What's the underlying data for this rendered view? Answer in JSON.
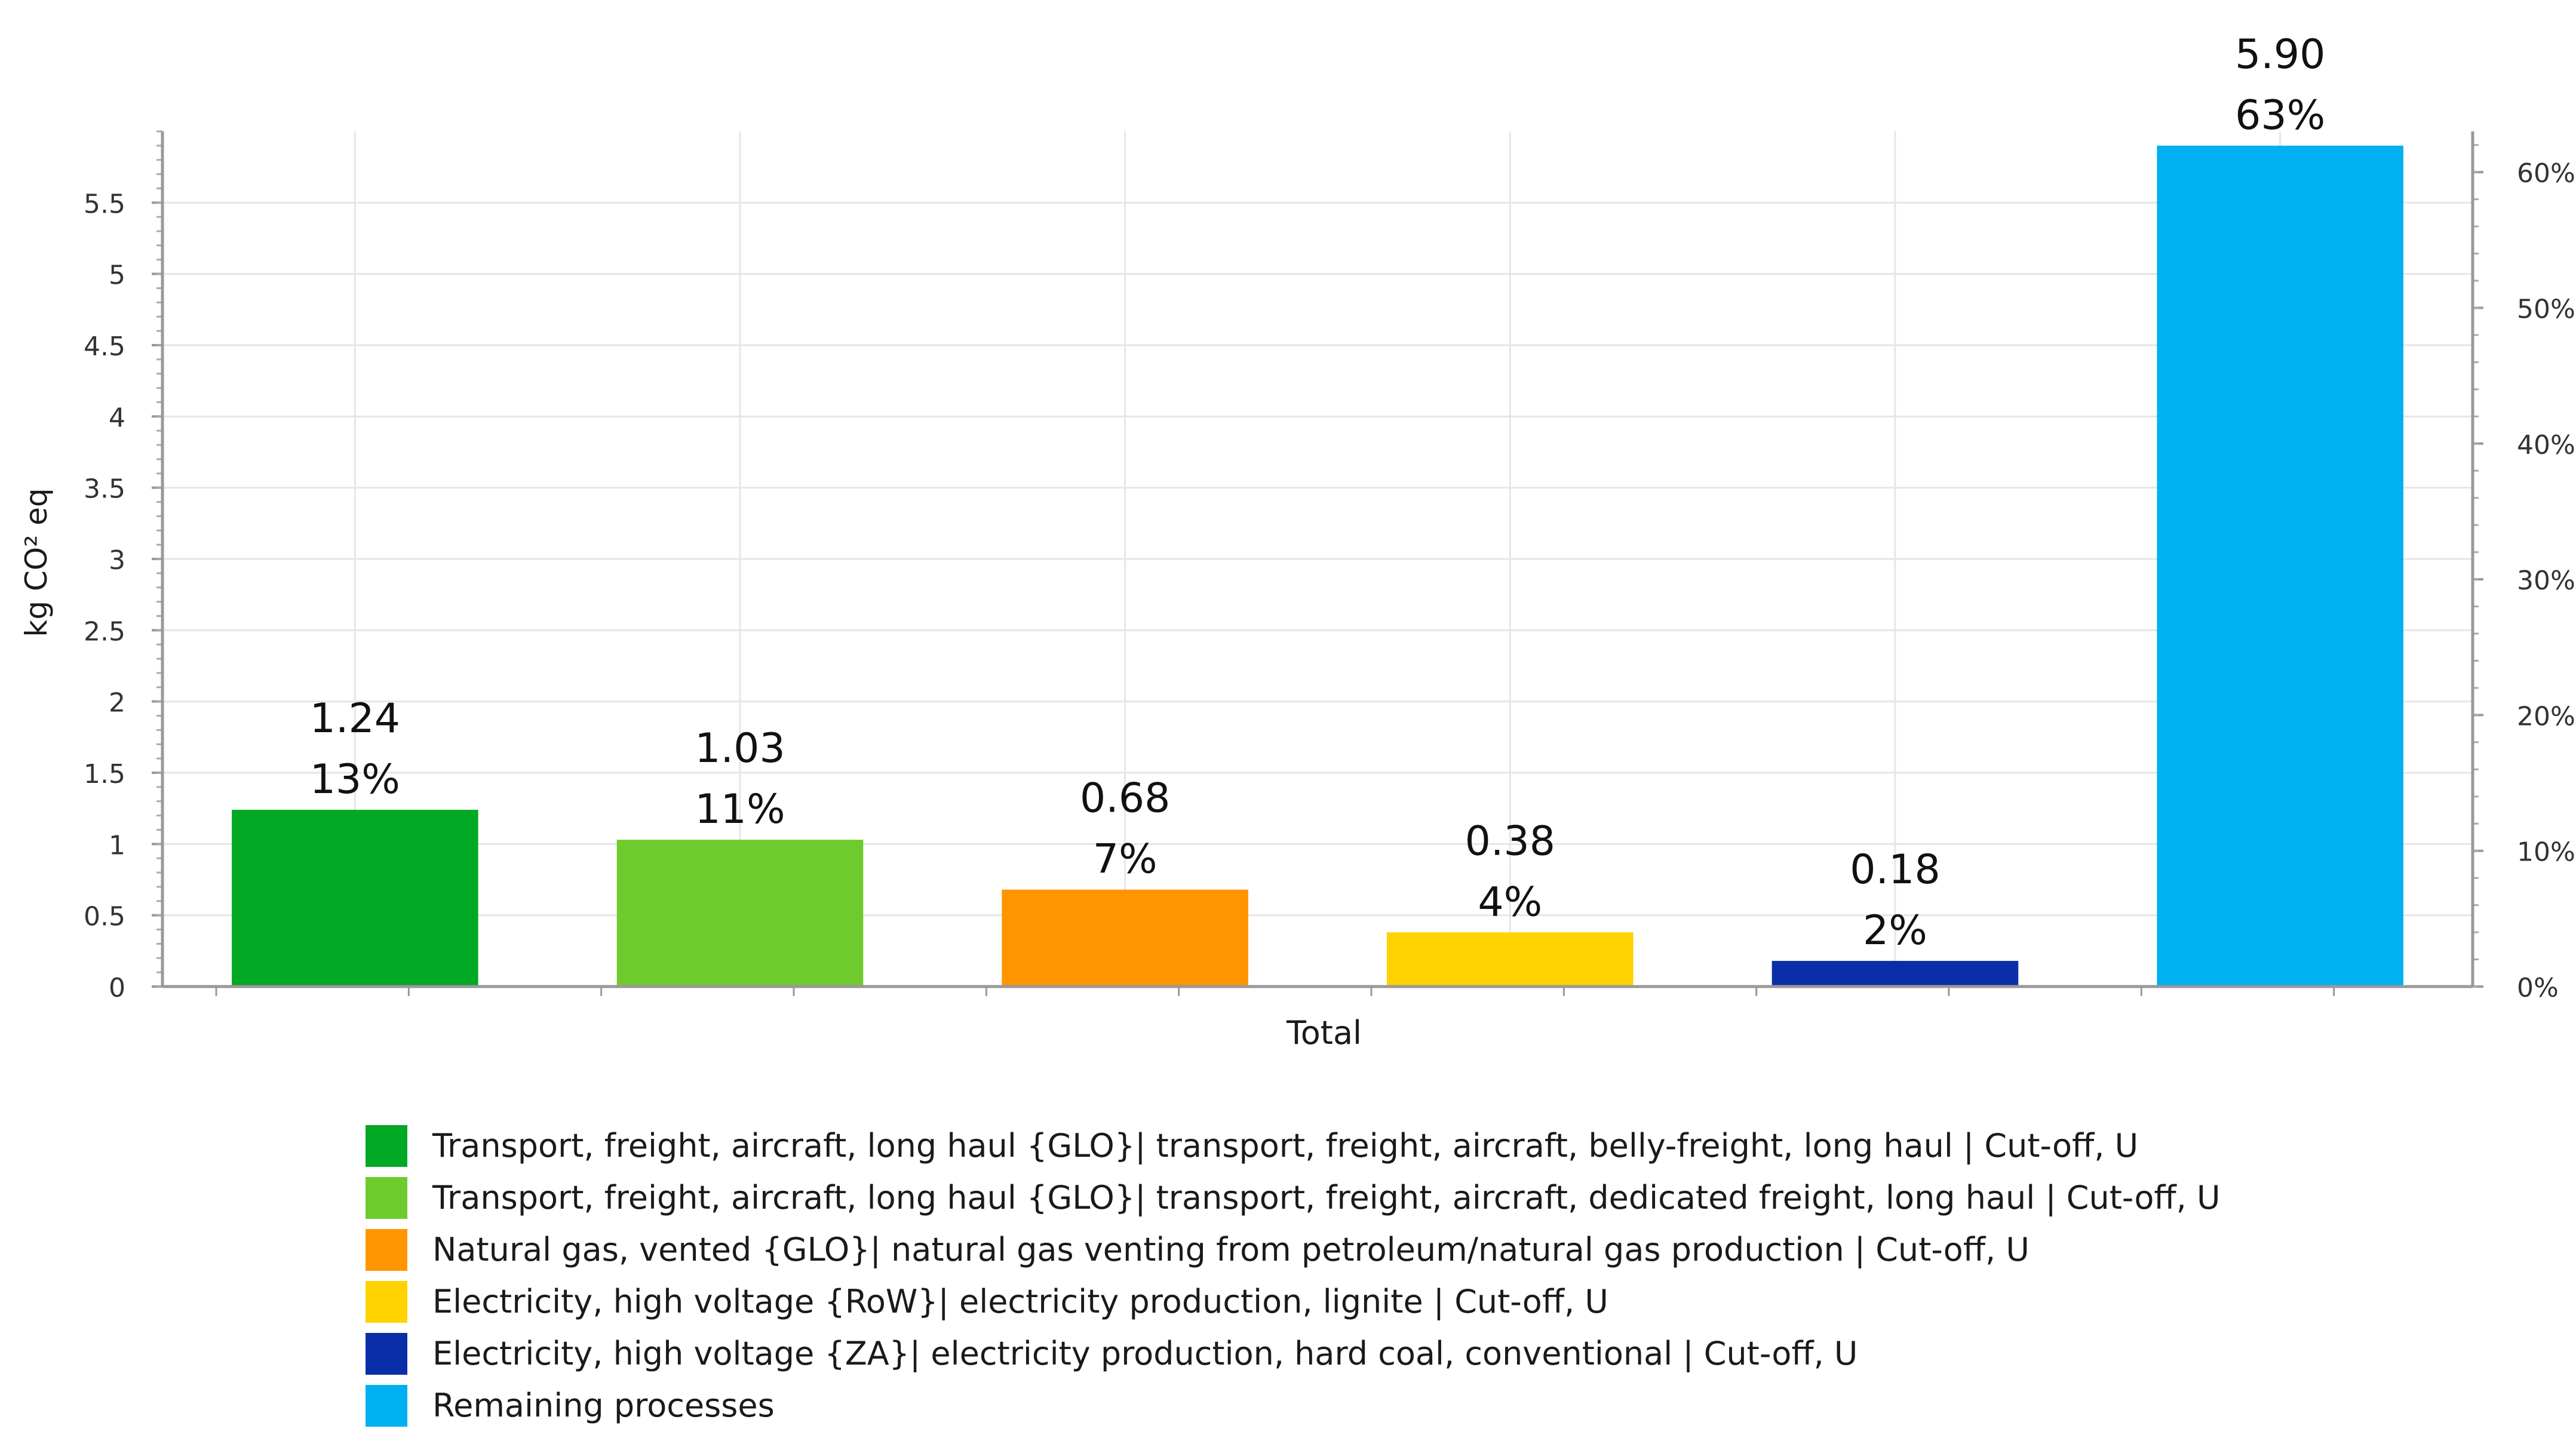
{
  "chart_data": {
    "type": "bar",
    "xlabel": "Total",
    "ylabel": "kg CO² eq",
    "ylim": [
      0,
      6
    ],
    "y2lim": [
      0,
      63
    ],
    "y_ticks": [
      "0",
      "0.5",
      "1",
      "1.5",
      "2",
      "2.5",
      "3",
      "3.5",
      "4",
      "4.5",
      "5",
      "5.5"
    ],
    "y2_ticks": [
      "0%",
      "10%",
      "20%",
      "30%",
      "40%",
      "50%",
      "60%"
    ],
    "grid": true,
    "legend_position": "bottom",
    "series": [
      {
        "name": "Transport, freight, aircraft, long haul {GLO}| transport, freight, aircraft, belly-freight, long haul | Cut-off, U",
        "value": 1.24,
        "value_label": "1.24",
        "percent_label": "13%",
        "color": "#00a823"
      },
      {
        "name": "Transport, freight, aircraft, long haul {GLO}| transport, freight, aircraft, dedicated freight, long haul | Cut-off, U",
        "value": 1.03,
        "value_label": "1.03",
        "percent_label": "11%",
        "color": "#6fca2d"
      },
      {
        "name": "Natural gas, vented {GLO}| natural gas venting from petroleum/natural gas production | Cut-off, U",
        "value": 0.68,
        "value_label": "0.68",
        "percent_label": "7%",
        "color": "#ff9500"
      },
      {
        "name": "Electricity, high voltage {RoW}| electricity production, lignite | Cut-off, U",
        "value": 0.38,
        "value_label": "0.38",
        "percent_label": "4%",
        "color": "#ffd200"
      },
      {
        "name": "Electricity, high voltage {ZA}| electricity production, hard coal, conventional | Cut-off, U",
        "value": 0.18,
        "value_label": "0.18",
        "percent_label": "2%",
        "color": "#0a2ea8"
      },
      {
        "name": "Remaining processes",
        "value": 5.9,
        "value_label": "5.90",
        "percent_label": "63%",
        "color": "#00b0f0"
      }
    ]
  }
}
